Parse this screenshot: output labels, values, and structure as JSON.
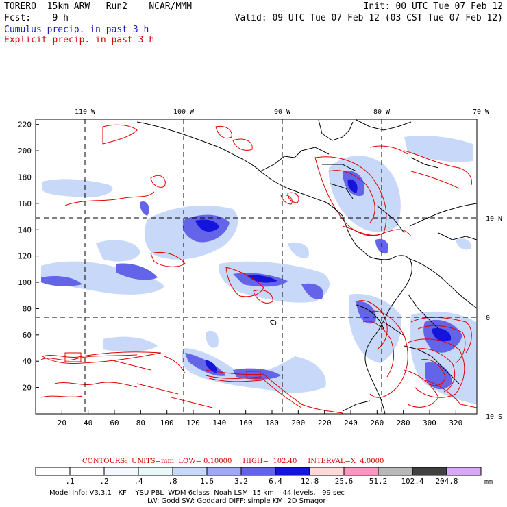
{
  "header": {
    "left1": "TORERO  15km ARW   Run2    NCAR/MMM",
    "left2": "Fcst:    9 h",
    "right1": "Init: 00 UTC Tue 07 Feb 12",
    "right2": "Valid: 09 UTC Tue 07 Feb 12 (03 CST Tue 07 Feb 12)",
    "line3": "Cumulus precip. in past 3 h",
    "line4": "Explicit precip. in past 3 h"
  },
  "axes": {
    "lon_labels": [
      "110 W",
      "100 W",
      "90 W",
      "80 W",
      "70 W"
    ],
    "lat_labels": [
      "10 N",
      "0",
      "10 S"
    ],
    "x_ticks": [
      "20",
      "40",
      "60",
      "80",
      "100",
      "120",
      "140",
      "160",
      "180",
      "200",
      "220",
      "240",
      "260",
      "280",
      "300",
      "320"
    ],
    "y_ticks": [
      "20",
      "40",
      "60",
      "80",
      "100",
      "120",
      "140",
      "160",
      "180",
      "200",
      "220"
    ]
  },
  "contour_info": {
    "label": "CONTOURS:  UNITS=mm  LOW= 0.10000     HIGH=  102.40     INTERVAL=X  4.0000"
  },
  "colorbar": {
    "levels": [
      ".1",
      ".2",
      ".4",
      ".8",
      "1.6",
      "3.2",
      "6.4",
      "12.8",
      "25.6",
      "51.2",
      "102.4",
      "204.8"
    ],
    "colors": [
      "#ffffff",
      "#ffffff",
      "#f4f8ff",
      "#e8f8f8",
      "#c8d8f8",
      "#a0a8f4",
      "#6464e8",
      "#1414dc",
      "#ffd8d8",
      "#f898c0",
      "#b8b8b8",
      "#404040",
      "#d8a8f8"
    ],
    "unit": "mm"
  },
  "footer": {
    "line1": "Model Info: V3.3.1   KF    YSU PBL  WDM 6class  Noah LSM  15 km,   44 levels,   99 sec",
    "line2": "LW: Godd SW: Goddard DIFF: simple KM: 2D Smagor"
  }
}
